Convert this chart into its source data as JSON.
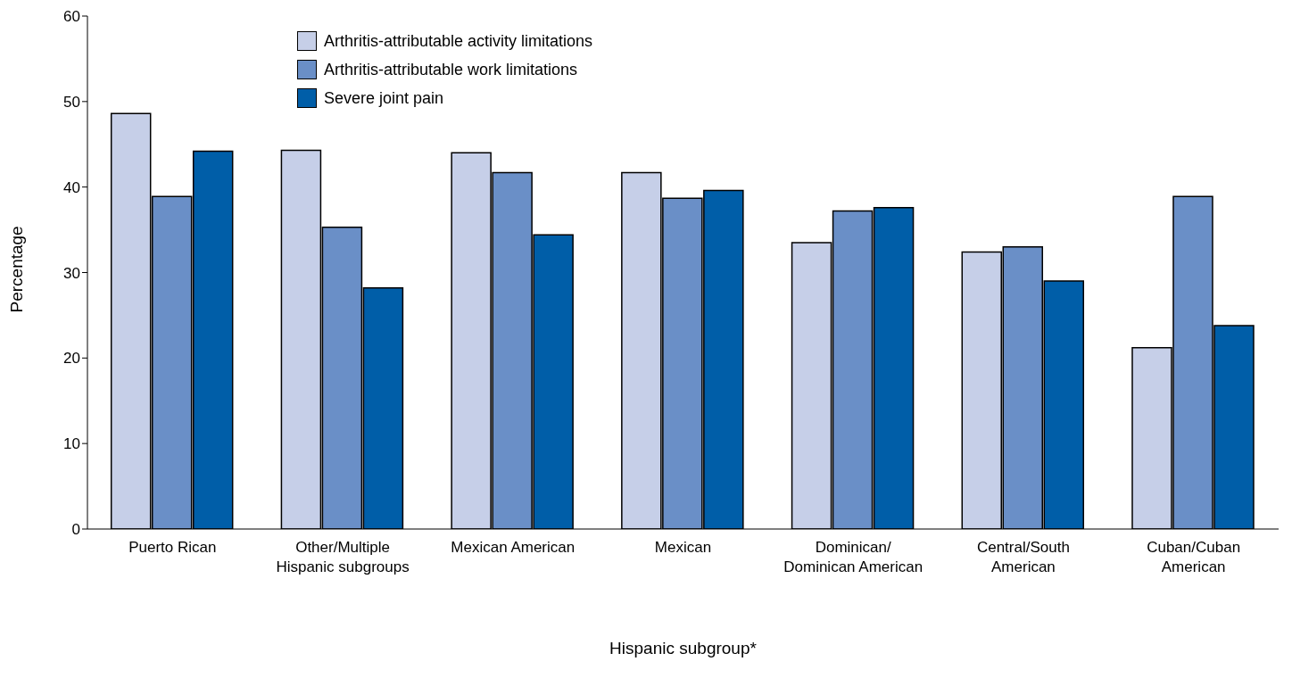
{
  "chart_data": {
    "type": "bar",
    "xlabel": "Hispanic subgroup*",
    "ylabel": "Percentage",
    "categories": [
      "Puerto Rican",
      "Other/Multiple Hispanic subgroups",
      "Mexican American",
      "Mexican",
      "Dominican/Dominican American",
      "Central/South American",
      "Cuban/Cuban American"
    ],
    "series": [
      {
        "name": "Arthritis-attributable activity limitations",
        "color": "#c6cfe8",
        "values": [
          48.6,
          44.3,
          44.0,
          41.7,
          33.5,
          32.4,
          21.2
        ]
      },
      {
        "name": "Arthritis-attributable work limitations",
        "color": "#6a8fc7",
        "values": [
          38.9,
          35.3,
          41.7,
          38.7,
          37.2,
          33.0,
          38.9
        ]
      },
      {
        "name": "Severe joint pain",
        "color": "#005ea8",
        "values": [
          44.2,
          28.2,
          34.4,
          39.6,
          37.6,
          29.0,
          23.8
        ]
      }
    ],
    "ylim": [
      0,
      60
    ],
    "yticks": [
      0,
      10,
      20,
      30,
      40,
      50,
      60
    ],
    "grid": false,
    "legend": "top left"
  }
}
